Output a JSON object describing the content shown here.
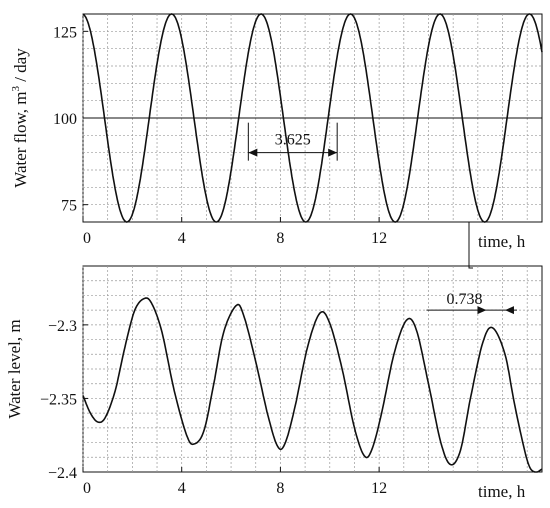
{
  "chart_data": [
    {
      "type": "line",
      "ylabel_main": "Water flow, m",
      "ylabel_sup": "3",
      "ylabel_tail": " / day",
      "xlabel": "time, h",
      "xlim": [
        0,
        18.6
      ],
      "ylim": [
        70,
        130
      ],
      "xticks": [
        {
          "v": 0,
          "label": "0"
        },
        {
          "v": 4,
          "label": "4"
        },
        {
          "v": 8,
          "label": "8"
        },
        {
          "v": 12,
          "label": "12"
        }
      ],
      "yticks": [
        {
          "v": 75,
          "label": "75"
        },
        {
          "v": 100,
          "label": "100"
        },
        {
          "v": 125,
          "label": "125"
        }
      ],
      "grid": true,
      "reference_line": 100,
      "series": [
        {
          "function": "sinusoid",
          "mean": 100,
          "amplitude": 30,
          "period_h": 3.625,
          "peak_times_h": [
            3.59,
            7.21,
            10.83,
            14.46,
            18.08
          ]
        }
      ],
      "annotation": {
        "label": "3.625",
        "x_from": 6.7,
        "x_to": 10.3,
        "y": 90
      }
    },
    {
      "type": "line",
      "ylabel": "Water level, m",
      "xlabel": "time, h",
      "xlim": [
        0,
        18.6
      ],
      "ylim": [
        -2.4,
        -2.26
      ],
      "xticks": [
        {
          "v": 0,
          "label": "0"
        },
        {
          "v": 4,
          "label": "4"
        },
        {
          "v": 8,
          "label": "8"
        },
        {
          "v": 12,
          "label": "12"
        }
      ],
      "yticks": [
        {
          "v": -2.3,
          "label": "−2.3"
        },
        {
          "v": -2.35,
          "label": "−2.35"
        },
        {
          "v": -2.4,
          "label": "−2.4"
        }
      ],
      "grid": true,
      "series": [
        {
          "points": [
            [
              0.0,
              -2.348
            ],
            [
              0.3,
              -2.36
            ],
            [
              0.6,
              -2.366
            ],
            [
              0.9,
              -2.363
            ],
            [
              1.3,
              -2.345
            ],
            [
              1.7,
              -2.315
            ],
            [
              2.1,
              -2.29
            ],
            [
              2.5,
              -2.282
            ],
            [
              2.8,
              -2.286
            ],
            [
              3.2,
              -2.305
            ],
            [
              3.7,
              -2.345
            ],
            [
              4.2,
              -2.375
            ],
            [
              4.5,
              -2.381
            ],
            [
              4.9,
              -2.372
            ],
            [
              5.3,
              -2.34
            ],
            [
              5.7,
              -2.305
            ],
            [
              6.2,
              -2.287
            ],
            [
              6.5,
              -2.293
            ],
            [
              7.0,
              -2.325
            ],
            [
              7.5,
              -2.362
            ],
            [
              7.9,
              -2.383
            ],
            [
              8.2,
              -2.38
            ],
            [
              8.6,
              -2.355
            ],
            [
              9.1,
              -2.315
            ],
            [
              9.6,
              -2.292
            ],
            [
              10.0,
              -2.299
            ],
            [
              10.5,
              -2.33
            ],
            [
              11.0,
              -2.37
            ],
            [
              11.4,
              -2.389
            ],
            [
              11.7,
              -2.385
            ],
            [
              12.1,
              -2.36
            ],
            [
              12.6,
              -2.32
            ],
            [
              13.1,
              -2.297
            ],
            [
              13.5,
              -2.303
            ],
            [
              14.0,
              -2.34
            ],
            [
              14.5,
              -2.38
            ],
            [
              14.9,
              -2.395
            ],
            [
              15.3,
              -2.385
            ],
            [
              15.7,
              -2.35
            ],
            [
              16.2,
              -2.312
            ],
            [
              16.6,
              -2.302
            ],
            [
              17.1,
              -2.32
            ],
            [
              17.5,
              -2.355
            ],
            [
              18.0,
              -2.392
            ],
            [
              18.3,
              -2.4
            ],
            [
              18.6,
              -2.398
            ]
          ]
        }
      ],
      "annotation": {
        "label": "0.738",
        "x_from": 16.35,
        "x_to": 17.1,
        "y": -2.29
      }
    }
  ]
}
